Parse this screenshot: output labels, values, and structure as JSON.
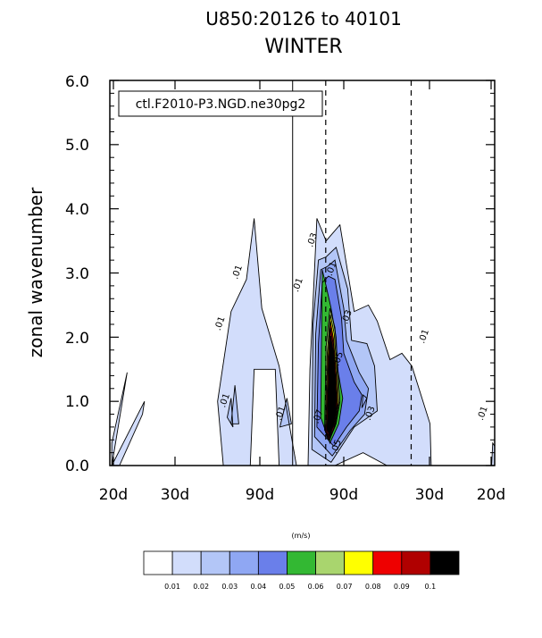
{
  "chart_data": {
    "type": "heatmap",
    "title": "U850:20126 to 40101",
    "subtitle": "WINTER",
    "xlabel": "",
    "ylabel": "zonal wavenumber",
    "case_label": "ctl.F2010-P3.NGD.ne30pg2",
    "units": "(m/s)",
    "ylim": [
      0,
      6
    ],
    "y_ticks": [
      "0.0",
      "1.0",
      "2.0",
      "3.0",
      "4.0",
      "5.0",
      "6.0"
    ],
    "x_ticks": [
      "20d",
      "30d",
      "90d",
      "90d",
      "30d",
      "20d"
    ],
    "contour_levels": [
      0.01,
      0.02,
      0.03,
      0.04,
      0.05,
      0.06,
      0.07,
      0.08,
      0.09,
      0.1
    ],
    "colorbar_labels": [
      "0.01",
      "0.02",
      "0.03",
      "0.04",
      "0.05",
      "0.06",
      "0.07",
      "0.08",
      "0.09",
      "0.1"
    ],
    "colors": [
      "#ffffff",
      "#d2ddfb",
      "#b3c6f7",
      "#8fa7f3",
      "#6a7fea",
      "#33b833",
      "#a9d56e",
      "#ffff00",
      "#ee0000",
      "#b00000",
      "#000000"
    ],
    "contour_labels": [
      {
        "text": ".01",
        "x": -0.65,
        "y": 3.0
      },
      {
        "text": ".01",
        "x": -0.83,
        "y": 2.2
      },
      {
        "text": ".01",
        "x": -0.78,
        "y": 1.0
      },
      {
        "text": ".01",
        "x": -0.2,
        "y": 0.8
      },
      {
        "text": ".01",
        "x": -0.02,
        "y": 2.8
      },
      {
        "text": ".03",
        "x": 0.13,
        "y": 3.5
      },
      {
        "text": ".01",
        "x": 0.33,
        "y": 3.05
      },
      {
        "text": ".03",
        "x": 0.49,
        "y": 2.3
      },
      {
        "text": ".05",
        "x": 0.4,
        "y": 1.65
      },
      {
        "text": ".07",
        "x": 0.19,
        "y": 0.75
      },
      {
        "text": ".05",
        "x": 0.38,
        "y": 0.28
      },
      {
        "text": ".03",
        "x": 0.73,
        "y": 0.8
      },
      {
        "text": ".01",
        "x": 1.29,
        "y": 2.0
      },
      {
        "text": ".01",
        "x": 1.9,
        "y": 0.8
      }
    ]
  }
}
